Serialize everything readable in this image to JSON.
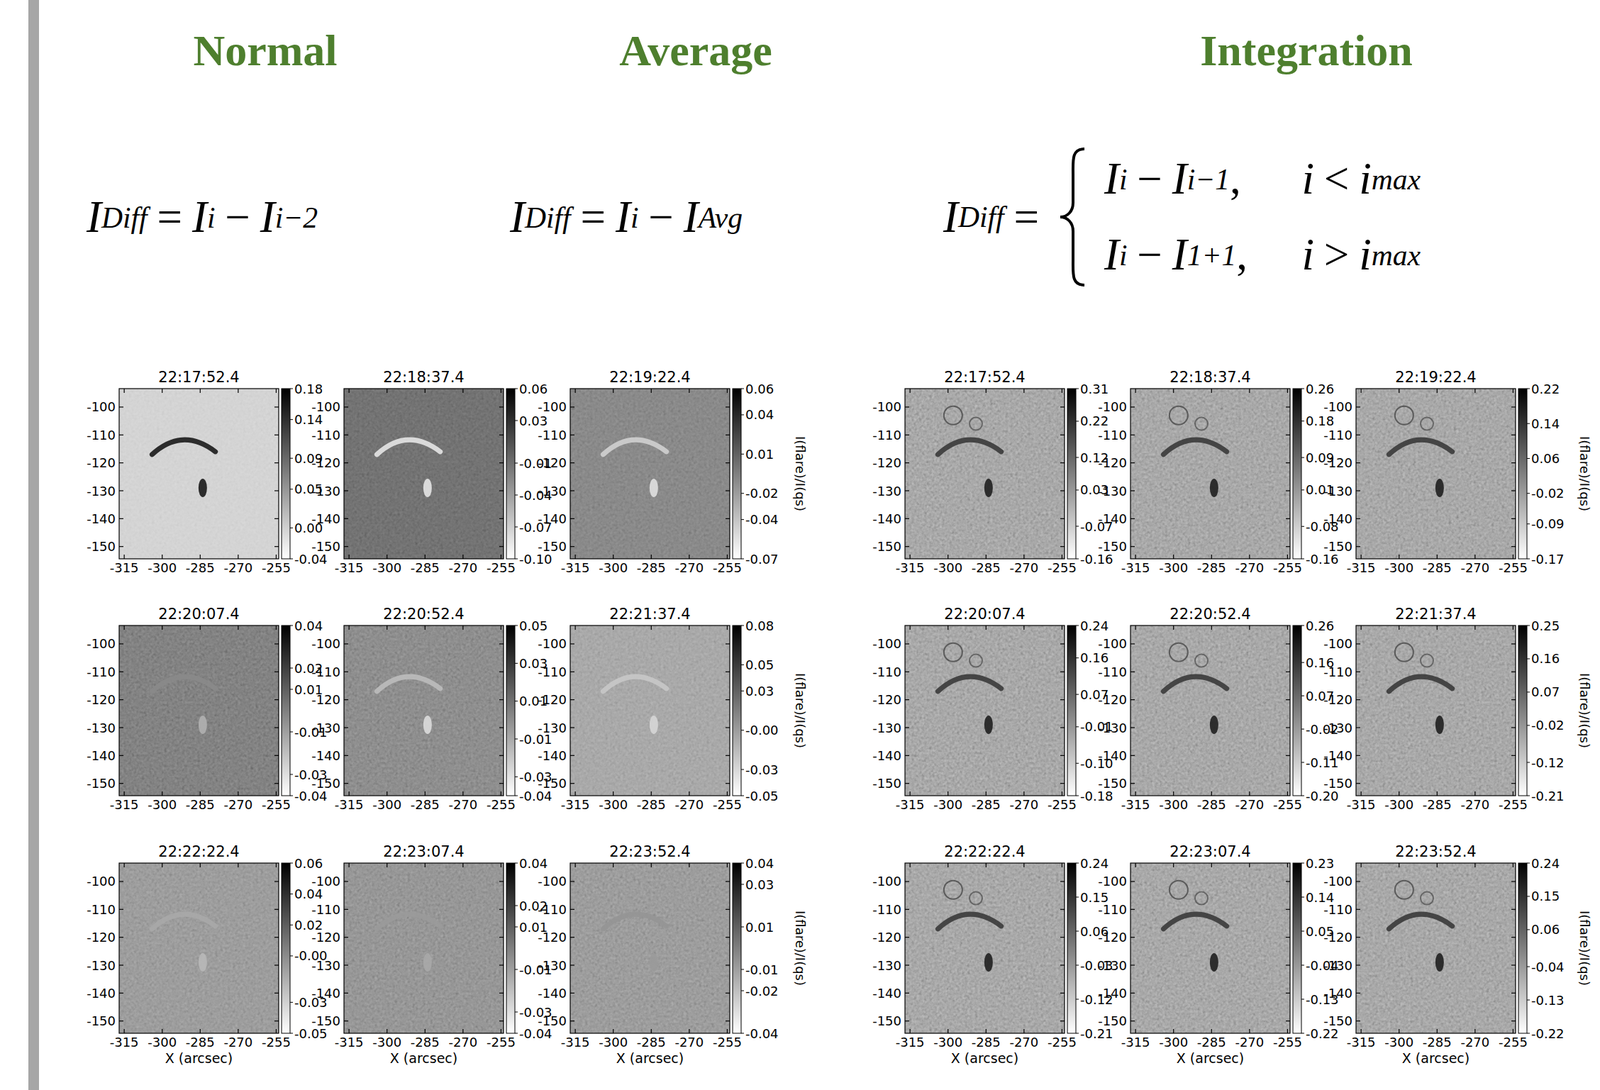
{
  "slide": {
    "headings": [
      "Normal",
      "Average",
      "Integration"
    ],
    "formulas": [
      {
        "tokens": [
          [
            "I",
            "Diff"
          ],
          "=",
          [
            "I",
            "i"
          ],
          "−",
          [
            "I",
            "i−2"
          ]
        ]
      },
      {
        "tokens": [
          [
            "I",
            "Diff"
          ],
          "=",
          [
            "I",
            "i"
          ],
          "−",
          [
            "I",
            "Avg"
          ]
        ]
      },
      {
        "tokens": [
          [
            "I",
            "Diff"
          ],
          "="
        ],
        "cases": [
          {
            "expr": [
              [
                "I",
                "i"
              ],
              "−",
              [
                "I",
                "i−1"
              ],
              ","
            ],
            "cond": [
              "i",
              "<",
              [
                "i",
                "max"
              ]
            ]
          },
          {
            "expr": [
              [
                "I",
                "i"
              ],
              "−",
              [
                "I",
                "1+1"
              ],
              ","
            ],
            "cond": [
              "i",
              ">",
              [
                "i",
                "max"
              ]
            ]
          }
        ]
      }
    ]
  },
  "chart_data": [
    {
      "type": "image",
      "title": "22:17:52.4",
      "xlim": [
        -317,
        -254
      ],
      "ylim": [
        -154.4,
        -93.4
      ],
      "xticks": [
        -315,
        -300,
        -285,
        -270,
        -255
      ],
      "yticks": [
        -100,
        -110,
        -120,
        -130,
        -140,
        -150
      ],
      "clim": [
        -0.04,
        0.18
      ],
      "cticks": [
        {
          "value": 0.18,
          "label": "0.18"
        },
        {
          "value": 0.14,
          "label": "0.14"
        },
        {
          "value": 0.09,
          "label": "0.09"
        },
        {
          "value": 0.05,
          "label": "0.05"
        },
        {
          "value": 0,
          "label": "0.00"
        },
        {
          "value": -0.04,
          "label": "-0.04"
        }
      ]
    },
    {
      "type": "image",
      "title": "22:18:37.4",
      "xlim": [
        -317,
        -254
      ],
      "ylim": [
        -154.4,
        -93.4
      ],
      "xticks": [
        -315,
        -300,
        -285,
        -270,
        -255
      ],
      "yticks": [
        -100,
        -110,
        -120,
        -130,
        -140,
        -150
      ],
      "clim": [
        -0.1,
        0.06
      ],
      "cticks": [
        {
          "value": 0.06,
          "label": "0.06"
        },
        {
          "value": 0.03,
          "label": "0.03"
        },
        {
          "value": -0.01,
          "label": "-0.01"
        },
        {
          "value": -0.04,
          "label": "-0.04"
        },
        {
          "value": -0.07,
          "label": "-0.07"
        },
        {
          "value": -0.1,
          "label": "-0.10"
        }
      ]
    },
    {
      "type": "image",
      "title": "22:19:22.4",
      "xlim": [
        -317,
        -254
      ],
      "ylim": [
        -154.4,
        -93.4
      ],
      "xticks": [
        -315,
        -300,
        -285,
        -270,
        -255
      ],
      "yticks": [
        -100,
        -110,
        -120,
        -130,
        -140,
        -150
      ],
      "clim": [
        -0.07,
        0.06
      ],
      "cticks": [
        {
          "value": 0.06,
          "label": "0.06"
        },
        {
          "value": 0.04,
          "label": "0.04"
        },
        {
          "value": 0.01,
          "label": "0.01"
        },
        {
          "value": -0.02,
          "label": "-0.02"
        },
        {
          "value": -0.04,
          "label": "-0.04"
        },
        {
          "value": -0.07,
          "label": "-0.07"
        }
      ],
      "clabel": "I(flare)/I(qs)"
    },
    {
      "type": "image",
      "title": "22:20:07.4",
      "xlim": [
        -317,
        -254
      ],
      "ylim": [
        -154.4,
        -93.4
      ],
      "xticks": [
        -315,
        -300,
        -285,
        -270,
        -255
      ],
      "yticks": [
        -100,
        -110,
        -120,
        -130,
        -140,
        -150
      ],
      "clim": [
        -0.04,
        0.04
      ],
      "cticks": [
        {
          "value": 0.04,
          "label": "0.04"
        },
        {
          "value": 0.02,
          "label": "0.02"
        },
        {
          "value": 0.01,
          "label": "0.01"
        },
        {
          "value": -0.01,
          "label": "-0.01"
        },
        {
          "value": -0.03,
          "label": "-0.03"
        },
        {
          "value": -0.04,
          "label": "-0.04"
        }
      ]
    },
    {
      "type": "image",
      "title": "22:20:52.4",
      "xlim": [
        -317,
        -254
      ],
      "ylim": [
        -154.4,
        -93.4
      ],
      "xticks": [
        -315,
        -300,
        -285,
        -270,
        -255
      ],
      "yticks": [
        -100,
        -110,
        -120,
        -130,
        -140,
        -150
      ],
      "clim": [
        -0.04,
        0.05
      ],
      "cticks": [
        {
          "value": 0.05,
          "label": "0.05"
        },
        {
          "value": 0.03,
          "label": "0.03"
        },
        {
          "value": 0.01,
          "label": "0.01"
        },
        {
          "value": -0.01,
          "label": "-0.01"
        },
        {
          "value": -0.03,
          "label": "-0.03"
        },
        {
          "value": -0.04,
          "label": "-0.04"
        }
      ]
    },
    {
      "type": "image",
      "title": "22:21:37.4",
      "xlim": [
        -317,
        -254
      ],
      "ylim": [
        -154.4,
        -93.4
      ],
      "xticks": [
        -315,
        -300,
        -285,
        -270,
        -255
      ],
      "yticks": [
        -100,
        -110,
        -120,
        -130,
        -140,
        -150
      ],
      "clim": [
        -0.05,
        0.08
      ],
      "cticks": [
        {
          "value": 0.08,
          "label": "0.08"
        },
        {
          "value": 0.05,
          "label": "0.05"
        },
        {
          "value": 0.03,
          "label": "0.03"
        },
        {
          "value": 0,
          "label": "-0.00"
        },
        {
          "value": -0.03,
          "label": "-0.03"
        },
        {
          "value": -0.05,
          "label": "-0.05"
        }
      ],
      "clabel": "I(flare)/I(qs)"
    },
    {
      "type": "image",
      "title": "22:22:22.4",
      "xlim": [
        -317,
        -254
      ],
      "ylim": [
        -154.4,
        -93.4
      ],
      "xticks": [
        -315,
        -300,
        -285,
        -270,
        -255
      ],
      "yticks": [
        -100,
        -110,
        -120,
        -130,
        -140,
        -150
      ],
      "xlabel": "X (arcsec)",
      "clim": [
        -0.05,
        0.06
      ],
      "cticks": [
        {
          "value": 0.06,
          "label": "0.06"
        },
        {
          "value": 0.04,
          "label": "0.04"
        },
        {
          "value": 0.02,
          "label": "0.02"
        },
        {
          "value": 0,
          "label": "-0.00"
        },
        {
          "value": -0.03,
          "label": "-0.03"
        },
        {
          "value": -0.05,
          "label": "-0.05"
        }
      ]
    },
    {
      "type": "image",
      "title": "22:23:07.4",
      "xlim": [
        -317,
        -254
      ],
      "ylim": [
        -154.4,
        -93.4
      ],
      "xticks": [
        -315,
        -300,
        -285,
        -270,
        -255
      ],
      "yticks": [
        -100,
        -110,
        -120,
        -130,
        -140,
        -150
      ],
      "xlabel": "X (arcsec)",
      "clim": [
        -0.04,
        0.04
      ],
      "cticks": [
        {
          "value": 0.04,
          "label": "0.04"
        },
        {
          "value": 0.02,
          "label": "0.02"
        },
        {
          "value": 0.01,
          "label": "0.01"
        },
        {
          "value": -0.01,
          "label": "-0.01"
        },
        {
          "value": -0.03,
          "label": "-0.03"
        },
        {
          "value": -0.04,
          "label": "-0.04"
        }
      ]
    },
    {
      "type": "image",
      "title": "22:23:52.4",
      "xlim": [
        -317,
        -254
      ],
      "ylim": [
        -154.4,
        -93.4
      ],
      "xticks": [
        -315,
        -300,
        -285,
        -270,
        -255
      ],
      "yticks": [
        -100,
        -110,
        -120,
        -130,
        -140,
        -150
      ],
      "xlabel": "X (arcsec)",
      "clim": [
        -0.04,
        0.04
      ],
      "cticks": [
        {
          "value": 0.04,
          "label": "0.04"
        },
        {
          "value": 0.03,
          "label": "0.03"
        },
        {
          "value": 0.01,
          "label": "0.01"
        },
        {
          "value": -0.01,
          "label": "-0.01"
        },
        {
          "value": -0.02,
          "label": "-0.02"
        },
        {
          "value": -0.04,
          "label": "-0.04"
        }
      ],
      "clabel": "I(flare)/I(qs)"
    },
    {
      "type": "image",
      "title": "22:17:52.4",
      "xlim": [
        -317,
        -254
      ],
      "ylim": [
        -154.4,
        -93.4
      ],
      "xticks": [
        -315,
        -300,
        -285,
        -270,
        -255
      ],
      "yticks": [
        -100,
        -110,
        -120,
        -130,
        -140,
        -150
      ],
      "clim": [
        -0.16,
        0.31
      ],
      "cticks": [
        {
          "value": 0.31,
          "label": "0.31"
        },
        {
          "value": 0.22,
          "label": "0.22"
        },
        {
          "value": 0.12,
          "label": "0.12"
        },
        {
          "value": 0.03,
          "label": "0.03"
        },
        {
          "value": -0.07,
          "label": "-0.07"
        },
        {
          "value": -0.16,
          "label": "-0.16"
        }
      ]
    },
    {
      "type": "image",
      "title": "22:18:37.4",
      "xlim": [
        -317,
        -254
      ],
      "ylim": [
        -154.4,
        -93.4
      ],
      "xticks": [
        -315,
        -300,
        -285,
        -270,
        -255
      ],
      "yticks": [
        -100,
        -110,
        -120,
        -130,
        -140,
        -150
      ],
      "clim": [
        -0.16,
        0.26
      ],
      "cticks": [
        {
          "value": 0.26,
          "label": "0.26"
        },
        {
          "value": 0.18,
          "label": "0.18"
        },
        {
          "value": 0.09,
          "label": "0.09"
        },
        {
          "value": 0.01,
          "label": "0.01"
        },
        {
          "value": -0.08,
          "label": "-0.08"
        },
        {
          "value": -0.16,
          "label": "-0.16"
        }
      ]
    },
    {
      "type": "image",
      "title": "22:19:22.4",
      "xlim": [
        -317,
        -254
      ],
      "ylim": [
        -154.4,
        -93.4
      ],
      "xticks": [
        -315,
        -300,
        -285,
        -270,
        -255
      ],
      "yticks": [
        -100,
        -110,
        -120,
        -130,
        -140,
        -150
      ],
      "clim": [
        -0.17,
        0.22
      ],
      "cticks": [
        {
          "value": 0.22,
          "label": "0.22"
        },
        {
          "value": 0.14,
          "label": "0.14"
        },
        {
          "value": 0.06,
          "label": "0.06"
        },
        {
          "value": -0.02,
          "label": "-0.02"
        },
        {
          "value": -0.09,
          "label": "-0.09"
        },
        {
          "value": -0.17,
          "label": "-0.17"
        }
      ],
      "clabel": "I(flare)/I(qs)"
    },
    {
      "type": "image",
      "title": "22:20:07.4",
      "xlim": [
        -317,
        -254
      ],
      "ylim": [
        -154.4,
        -93.4
      ],
      "xticks": [
        -315,
        -300,
        -285,
        -270,
        -255
      ],
      "yticks": [
        -100,
        -110,
        -120,
        -130,
        -140,
        -150
      ],
      "clim": [
        -0.18,
        0.24
      ],
      "cticks": [
        {
          "value": 0.24,
          "label": "0.24"
        },
        {
          "value": 0.16,
          "label": "0.16"
        },
        {
          "value": 0.07,
          "label": "0.07"
        },
        {
          "value": -0.01,
          "label": "-0.01"
        },
        {
          "value": -0.1,
          "label": "-0.10"
        },
        {
          "value": -0.18,
          "label": "-0.18"
        }
      ]
    },
    {
      "type": "image",
      "title": "22:20:52.4",
      "xlim": [
        -317,
        -254
      ],
      "ylim": [
        -154.4,
        -93.4
      ],
      "xticks": [
        -315,
        -300,
        -285,
        -270,
        -255
      ],
      "yticks": [
        -100,
        -110,
        -120,
        -130,
        -140,
        -150
      ],
      "clim": [
        -0.2,
        0.26
      ],
      "cticks": [
        {
          "value": 0.26,
          "label": "0.26"
        },
        {
          "value": 0.16,
          "label": "0.16"
        },
        {
          "value": 0.07,
          "label": "0.07"
        },
        {
          "value": -0.02,
          "label": "-0.02"
        },
        {
          "value": -0.11,
          "label": "-0.11"
        },
        {
          "value": -0.2,
          "label": "-0.20"
        }
      ]
    },
    {
      "type": "image",
      "title": "22:21:37.4",
      "xlim": [
        -317,
        -254
      ],
      "ylim": [
        -154.4,
        -93.4
      ],
      "xticks": [
        -315,
        -300,
        -285,
        -270,
        -255
      ],
      "yticks": [
        -100,
        -110,
        -120,
        -130,
        -140,
        -150
      ],
      "clim": [
        -0.21,
        0.25
      ],
      "cticks": [
        {
          "value": 0.25,
          "label": "0.25"
        },
        {
          "value": 0.16,
          "label": "0.16"
        },
        {
          "value": 0.07,
          "label": "0.07"
        },
        {
          "value": -0.02,
          "label": "-0.02"
        },
        {
          "value": -0.12,
          "label": "-0.12"
        },
        {
          "value": -0.21,
          "label": "-0.21"
        }
      ],
      "clabel": "I(flare)/I(qs)"
    },
    {
      "type": "image",
      "title": "22:22:22.4",
      "xlim": [
        -317,
        -254
      ],
      "ylim": [
        -154.4,
        -93.4
      ],
      "xticks": [
        -315,
        -300,
        -285,
        -270,
        -255
      ],
      "yticks": [
        -100,
        -110,
        -120,
        -130,
        -140,
        -150
      ],
      "xlabel": "X (arcsec)",
      "clim": [
        -0.21,
        0.24
      ],
      "cticks": [
        {
          "value": 0.24,
          "label": "0.24"
        },
        {
          "value": 0.15,
          "label": "0.15"
        },
        {
          "value": 0.06,
          "label": "0.06"
        },
        {
          "value": -0.03,
          "label": "-0.03"
        },
        {
          "value": -0.12,
          "label": "-0.12"
        },
        {
          "value": -0.21,
          "label": "-0.21"
        }
      ]
    },
    {
      "type": "image",
      "title": "22:23:07.4",
      "xlim": [
        -317,
        -254
      ],
      "ylim": [
        -154.4,
        -93.4
      ],
      "xticks": [
        -315,
        -300,
        -285,
        -270,
        -255
      ],
      "yticks": [
        -100,
        -110,
        -120,
        -130,
        -140,
        -150
      ],
      "xlabel": "X (arcsec)",
      "clim": [
        -0.22,
        0.23
      ],
      "cticks": [
        {
          "value": 0.23,
          "label": "0.23"
        },
        {
          "value": 0.14,
          "label": "0.14"
        },
        {
          "value": 0.05,
          "label": "0.05"
        },
        {
          "value": -0.04,
          "label": "-0.04"
        },
        {
          "value": -0.13,
          "label": "-0.13"
        },
        {
          "value": -0.22,
          "label": "-0.22"
        }
      ]
    },
    {
      "type": "image",
      "title": "22:23:52.4",
      "xlim": [
        -317,
        -254
      ],
      "ylim": [
        -154.4,
        -93.4
      ],
      "xticks": [
        -315,
        -300,
        -285,
        -270,
        -255
      ],
      "yticks": [
        -100,
        -110,
        -120,
        -130,
        -140,
        -150
      ],
      "xlabel": "X (arcsec)",
      "clim": [
        -0.22,
        0.24
      ],
      "cticks": [
        {
          "value": 0.24,
          "label": "0.24"
        },
        {
          "value": 0.15,
          "label": "0.15"
        },
        {
          "value": 0.06,
          "label": "0.06"
        },
        {
          "value": -0.04,
          "label": "-0.04"
        },
        {
          "value": -0.13,
          "label": "-0.13"
        },
        {
          "value": -0.22,
          "label": "-0.22"
        }
      ],
      "clabel": "I(flare)/I(qs)"
    }
  ]
}
